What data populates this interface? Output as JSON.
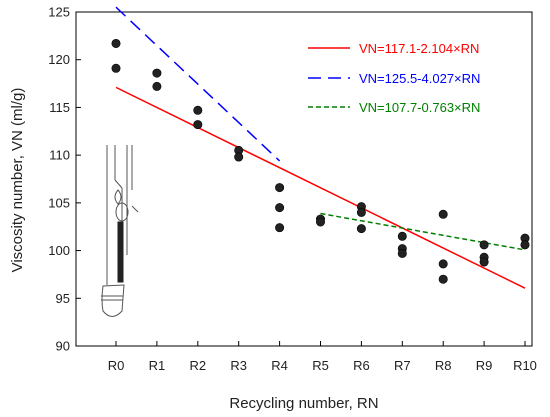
{
  "chart_data": {
    "type": "scatter",
    "xlabel": "Recycling number, RN",
    "ylabel": "Viscosity number, VN  (ml/g)",
    "categories": [
      "R0",
      "R1",
      "R2",
      "R3",
      "R4",
      "R5",
      "R6",
      "R7",
      "R8",
      "R9",
      "R10"
    ],
    "ylim": [
      90,
      125
    ],
    "yticks": [
      90,
      95,
      100,
      105,
      110,
      115,
      120,
      125
    ],
    "grid": false,
    "legend_position": "top-right",
    "points": [
      {
        "x": 0,
        "y": 121.7
      },
      {
        "x": 0,
        "y": 119.1
      },
      {
        "x": 1,
        "y": 118.6
      },
      {
        "x": 1,
        "y": 117.2
      },
      {
        "x": 2,
        "y": 114.7
      },
      {
        "x": 2,
        "y": 113.2
      },
      {
        "x": 3,
        "y": 110.5
      },
      {
        "x": 3,
        "y": 109.8
      },
      {
        "x": 4,
        "y": 106.6
      },
      {
        "x": 4,
        "y": 104.5
      },
      {
        "x": 4,
        "y": 102.4
      },
      {
        "x": 5,
        "y": 103.3
      },
      {
        "x": 5,
        "y": 103.0
      },
      {
        "x": 6,
        "y": 104.6
      },
      {
        "x": 6,
        "y": 104.0
      },
      {
        "x": 6,
        "y": 102.3
      },
      {
        "x": 7,
        "y": 101.5
      },
      {
        "x": 7,
        "y": 100.2
      },
      {
        "x": 7,
        "y": 99.7
      },
      {
        "x": 8,
        "y": 103.8
      },
      {
        "x": 8,
        "y": 98.6
      },
      {
        "x": 8,
        "y": 97.0
      },
      {
        "x": 9,
        "y": 100.6
      },
      {
        "x": 9,
        "y": 99.3
      },
      {
        "x": 9,
        "y": 98.8
      },
      {
        "x": 10,
        "y": 101.3
      },
      {
        "x": 10,
        "y": 100.6
      }
    ],
    "fits": [
      {
        "name": "VN=117.1-2.104×RN",
        "intercept": 117.1,
        "slope": -2.104,
        "x_range": [
          0,
          10
        ],
        "color": "#ff0000",
        "dash": "solid"
      },
      {
        "name": "VN=125.5-4.027×RN",
        "intercept": 125.5,
        "slope": -4.027,
        "x_range": [
          0,
          4
        ],
        "color": "#0000ff",
        "dash": "long-dash"
      },
      {
        "name": "VN=107.7-0.763×RN",
        "intercept": 107.7,
        "slope": -0.763,
        "x_range": [
          5,
          10
        ],
        "color": "#008000",
        "dash": "short-dash"
      }
    ]
  },
  "inset_icon": "viscometer-icon"
}
